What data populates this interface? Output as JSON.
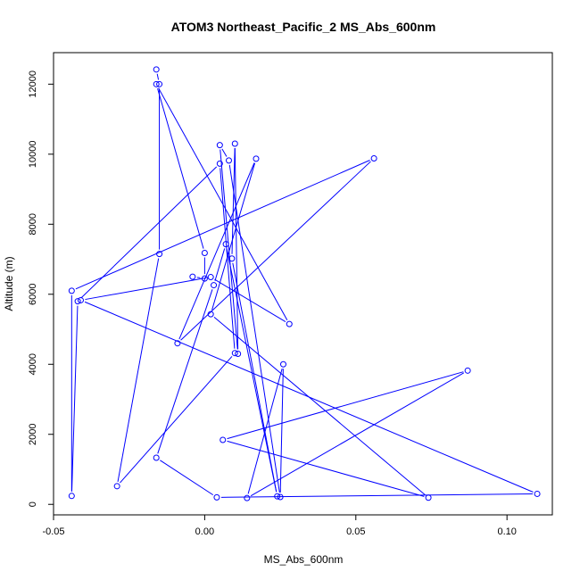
{
  "chart_data": {
    "type": "line",
    "title": "ATOM3 Northeast_Pacific_2 MS_Abs_600nm",
    "xlabel": "MS_Abs_600nm",
    "ylabel": "Altitude (m)",
    "xlim": [
      -0.05,
      0.115
    ],
    "ylim": [
      -300,
      12900
    ],
    "x_ticks": [
      -0.05,
      0.0,
      0.05,
      0.1
    ],
    "x_tick_labels": [
      "-0.05",
      "0.00",
      "0.05",
      "0.10"
    ],
    "y_ticks": [
      0,
      2000,
      4000,
      6000,
      8000,
      10000,
      12000
    ],
    "y_tick_labels": [
      "0",
      "2000",
      "4000",
      "6000",
      "8000",
      "10000",
      "12000"
    ],
    "grid": false,
    "legend": "none",
    "series": [
      {
        "color": "#0000ff",
        "marker": "open-circle",
        "points": [
          [
            -0.016,
            12420
          ],
          [
            -0.015,
            12000
          ],
          [
            -0.015,
            7150
          ],
          [
            -0.029,
            520
          ],
          [
            0.01,
            4320
          ],
          [
            0.005,
            9730
          ],
          [
            -0.042,
            5800
          ],
          [
            -0.044,
            240
          ],
          [
            -0.044,
            6100
          ],
          [
            0.056,
            9880
          ],
          [
            -0.009,
            4600
          ],
          [
            0.017,
            9870
          ],
          [
            0.002,
            5430
          ],
          [
            0.074,
            190
          ],
          [
            0.006,
            1840
          ],
          [
            0.087,
            3820
          ],
          [
            0.014,
            180
          ],
          [
            0.026,
            4000
          ],
          [
            0.025,
            210
          ],
          [
            0.008,
            9820
          ],
          [
            0.005,
            10260
          ],
          [
            0.011,
            4300
          ],
          [
            0.01,
            10300
          ],
          [
            0.009,
            7020
          ],
          [
            0.024,
            230
          ],
          [
            0.007,
            7430
          ],
          [
            0.003,
            6260
          ],
          [
            -0.016,
            1330
          ],
          [
            0.004,
            200
          ],
          [
            0.11,
            300
          ],
          [
            -0.041,
            5830
          ],
          [
            0.002,
            6490
          ],
          [
            0.028,
            5150
          ],
          [
            -0.016,
            12000
          ],
          [
            0.0,
            7180
          ],
          [
            0.0,
            6450
          ],
          [
            -0.004,
            6500
          ]
        ]
      }
    ]
  }
}
